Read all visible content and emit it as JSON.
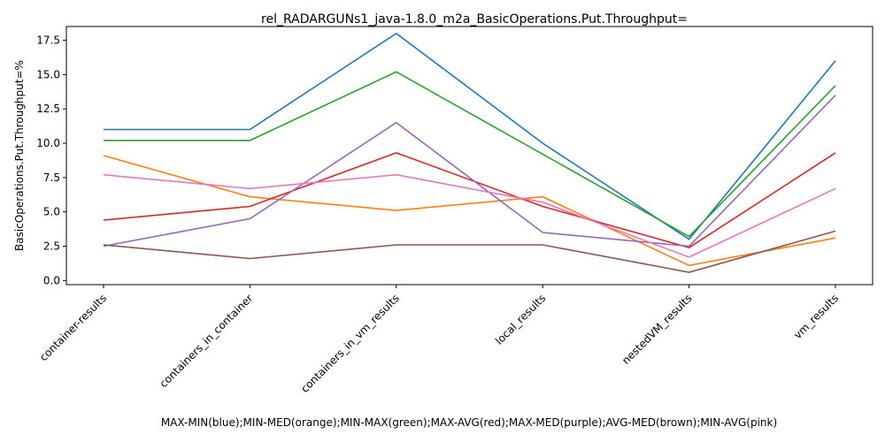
{
  "chart_data": {
    "type": "line",
    "title": "rel_RADARGUNs1_java-1.8.0_m2a_BasicOperations.Put.Throughput=",
    "xlabel": "MAX-MIN(blue);MIN-MED(orange);MIN-MAX(green);MAX-AVG(red);MAX-MED(purple);AVG-MED(brown);MIN-AVG(pink)",
    "ylabel": "BasicOperations.Put.Throughput=%",
    "categories": [
      "container-results",
      "containers_in_container",
      "containers_in_vm_results",
      "local_results",
      "nestedVM_results",
      "vm_results"
    ],
    "ylim": [
      -0.3,
      18.5
    ],
    "yticks": [
      0.0,
      2.5,
      5.0,
      7.5,
      10.0,
      12.5,
      15.0,
      17.5
    ],
    "ytick_labels": [
      "0.0",
      "2.5",
      "5.0",
      "7.5",
      "10.0",
      "12.5",
      "15.0",
      "17.5"
    ],
    "grid": false,
    "series": [
      {
        "color": "#1f77b4",
        "values": [
          11.0,
          11.0,
          18.0,
          10.0,
          3.0,
          16.0
        ]
      },
      {
        "color": "#ff7f0e",
        "values": [
          9.1,
          6.1,
          5.1,
          6.1,
          1.1,
          3.1
        ]
      },
      {
        "color": "#2ca02c",
        "values": [
          10.2,
          10.2,
          15.2,
          9.2,
          3.2,
          14.2
        ]
      },
      {
        "color": "#d62728",
        "values": [
          4.4,
          5.4,
          9.3,
          5.4,
          2.4,
          9.3
        ]
      },
      {
        "color": "#9467bd",
        "values": [
          2.5,
          4.5,
          11.5,
          3.5,
          2.5,
          13.5
        ]
      },
      {
        "color": "#8c564b",
        "values": [
          2.6,
          1.6,
          2.6,
          2.6,
          0.6,
          3.6
        ]
      },
      {
        "color": "#e377c2",
        "values": [
          7.7,
          6.7,
          7.7,
          5.7,
          1.7,
          6.7
        ]
      }
    ]
  }
}
